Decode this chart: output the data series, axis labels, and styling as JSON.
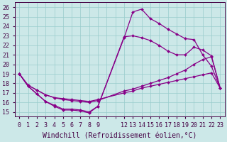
{
  "bg_color": "#cce8e8",
  "line_color": "#880088",
  "grid_color": "#99cccc",
  "xlim": [
    -0.5,
    23.5
  ],
  "ylim": [
    14.5,
    26.5
  ],
  "xticks": [
    0,
    1,
    2,
    3,
    4,
    5,
    6,
    7,
    8,
    9,
    12,
    13,
    14,
    15,
    16,
    17,
    18,
    19,
    20,
    21,
    22,
    23
  ],
  "xtick_labels": [
    "0",
    "1",
    "2",
    "3",
    "4",
    "5",
    "6",
    "7",
    "8",
    "9",
    "12",
    "13",
    "14",
    "15",
    "16",
    "17",
    "18",
    "19",
    "20",
    "21",
    "22",
    "23"
  ],
  "yticks": [
    15,
    16,
    17,
    18,
    19,
    20,
    21,
    22,
    23,
    24,
    25,
    26
  ],
  "xlabel": "Windchill (Refroidissement éolien,°C)",
  "line1_x": [
    0,
    1,
    2,
    3,
    4,
    5,
    6,
    7,
    8,
    9,
    12,
    13,
    14,
    15,
    16,
    17,
    18,
    19,
    20,
    21,
    22,
    23
  ],
  "line1_y": [
    19.0,
    17.7,
    16.9,
    16.1,
    15.6,
    15.2,
    15.2,
    15.1,
    14.9,
    15.6,
    22.8,
    25.5,
    25.8,
    24.8,
    24.3,
    23.7,
    23.2,
    22.7,
    22.6,
    21.0,
    19.8,
    17.5
  ],
  "line2_x": [
    0,
    1,
    2,
    3,
    4,
    5,
    6,
    7,
    8,
    9,
    12,
    13,
    14,
    15,
    16,
    17,
    18,
    19,
    20,
    21,
    22,
    23
  ],
  "line2_y": [
    19.0,
    17.7,
    16.9,
    16.1,
    15.7,
    15.3,
    15.3,
    15.2,
    15.0,
    15.6,
    22.9,
    23.0,
    22.8,
    22.5,
    22.0,
    21.4,
    21.0,
    21.0,
    21.8,
    21.5,
    20.9,
    17.5
  ],
  "line3_x": [
    0,
    1,
    2,
    3,
    4,
    5,
    6,
    7,
    8,
    9,
    12,
    13,
    14,
    15,
    16,
    17,
    18,
    19,
    20,
    21,
    22,
    23
  ],
  "line3_y": [
    19.0,
    17.8,
    17.3,
    16.8,
    16.5,
    16.3,
    16.2,
    16.1,
    16.0,
    16.2,
    17.2,
    17.4,
    17.7,
    18.0,
    18.3,
    18.6,
    19.0,
    19.4,
    20.0,
    20.5,
    20.8,
    17.5
  ],
  "line4_x": [
    0,
    1,
    2,
    3,
    4,
    5,
    6,
    7,
    8,
    9,
    12,
    13,
    14,
    15,
    16,
    17,
    18,
    19,
    20,
    21,
    22,
    23
  ],
  "line4_y": [
    19.0,
    17.8,
    17.3,
    16.8,
    16.5,
    16.4,
    16.3,
    16.2,
    16.1,
    16.3,
    17.0,
    17.2,
    17.5,
    17.7,
    17.9,
    18.1,
    18.3,
    18.5,
    18.7,
    18.9,
    19.1,
    17.5
  ],
  "marker": "D",
  "markersize": 2,
  "linewidth": 0.9,
  "xlabel_fontsize": 7,
  "tick_fontsize": 6
}
